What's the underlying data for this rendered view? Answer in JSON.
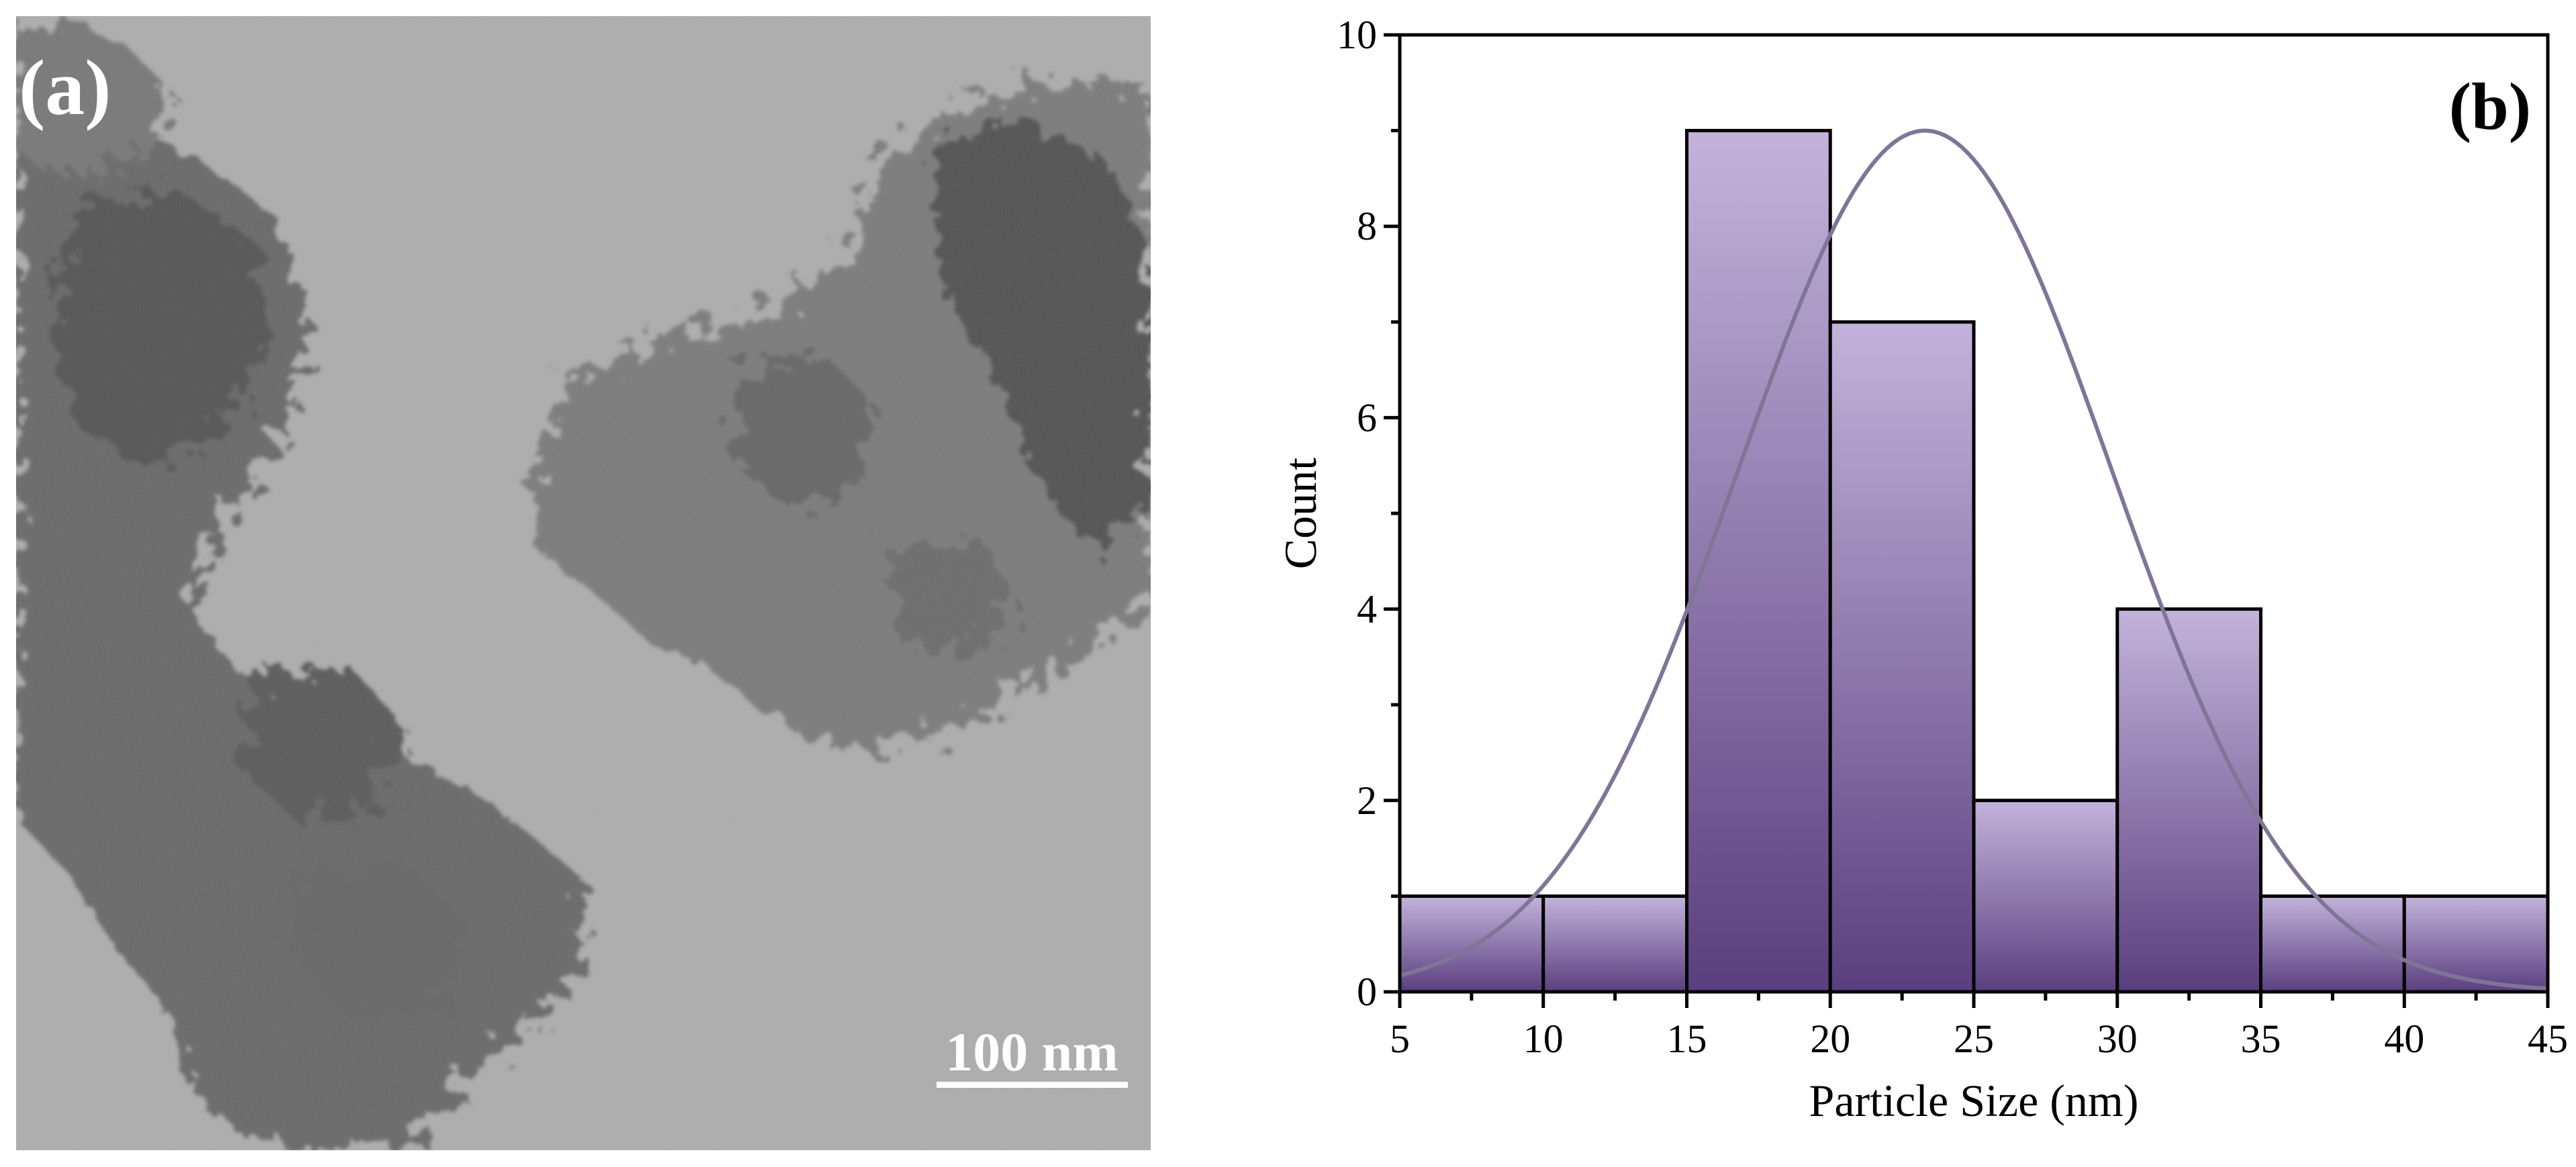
{
  "panel_a": {
    "label": "(a)",
    "scale_bar": "100 nm"
  },
  "chart_data": {
    "type": "bar",
    "panel_label": "(b)",
    "title": "",
    "xlabel": "Particle Size (nm)",
    "ylabel": "Count",
    "bins": [
      {
        "x0": 5,
        "x1": 10,
        "count": 1
      },
      {
        "x0": 10,
        "x1": 15,
        "count": 1
      },
      {
        "x0": 15,
        "x1": 20,
        "count": 9
      },
      {
        "x0": 20,
        "x1": 25,
        "count": 7
      },
      {
        "x0": 25,
        "x1": 30,
        "count": 2
      },
      {
        "x0": 30,
        "x1": 35,
        "count": 4
      },
      {
        "x0": 35,
        "x1": 40,
        "count": 1
      },
      {
        "x0": 40,
        "x1": 45,
        "count": 1
      }
    ],
    "fit": {
      "type": "gaussian",
      "peak": 9,
      "center": 23.3,
      "sigma": 6.5
    },
    "xlim": [
      5,
      45
    ],
    "ylim": [
      0,
      10
    ],
    "xticks": [
      5,
      10,
      15,
      20,
      25,
      30,
      35,
      40,
      45
    ],
    "yticks": [
      0,
      2,
      4,
      6,
      8,
      10
    ],
    "grid": false,
    "colors": {
      "bar_top": "#c3b3db",
      "bar_bottom": "#5a3f7e",
      "bar_edge": "#000000",
      "fit": "#7f7596"
    }
  }
}
